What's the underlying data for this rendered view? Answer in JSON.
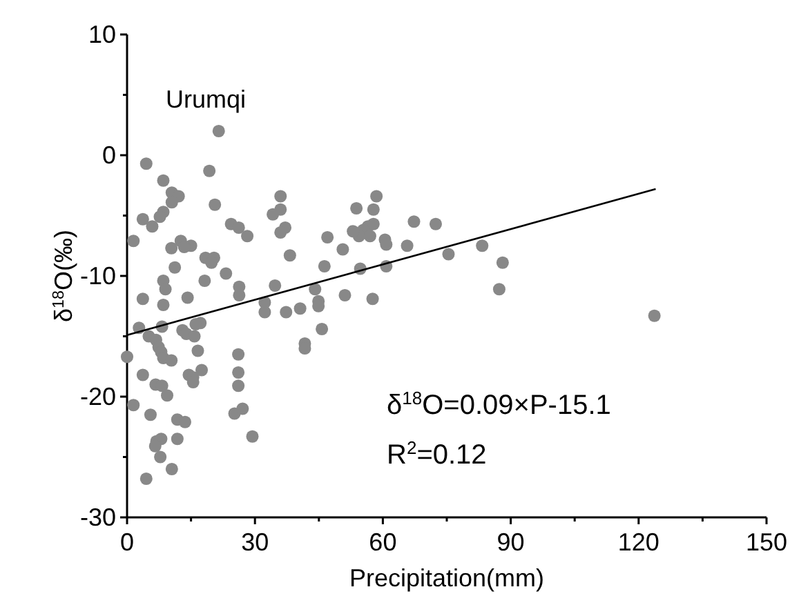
{
  "chart_data": {
    "type": "scatter",
    "xlabel": "Precipitation(mm)",
    "ylabel": "δ$^{18}$O(‰)",
    "xlim": [
      0,
      150
    ],
    "ylim": [
      -30,
      10
    ],
    "xticks": [
      0,
      {
        "value": 15,
        "label": null
      },
      30,
      {
        "value": 45,
        "label": null
      },
      60,
      {
        "value": 75,
        "label": null
      },
      90,
      {
        "value": 105,
        "label": null
      },
      120,
      {
        "value": 135,
        "label": null
      },
      150
    ],
    "yticks": [
      -30,
      {
        "value": -25,
        "label": null
      },
      -20,
      {
        "value": -15,
        "label": null
      },
      -10,
      {
        "value": -5,
        "label": null
      },
      0,
      {
        "value": 5,
        "label": null
      },
      10
    ],
    "grid": false,
    "marker": "circle",
    "annotations": [
      "Urumqi",
      "δ$^{18}$O=0.09×P-15.1",
      "R$^{2}$=0.12"
    ],
    "series": [
      {
        "type": "scatter",
        "color": "#888888",
        "x": [
          21.5,
          4.5,
          19.3,
          8.5,
          10.5,
          12.1,
          10.5,
          36,
          20.6,
          8.5,
          36,
          34.2,
          3.7,
          7.7,
          5.9,
          24.4,
          26.2,
          28.2,
          37.1,
          36,
          1.5,
          12.6,
          15,
          13.4,
          10.4,
          38.2,
          18.4,
          20.4,
          19.8,
          11.2,
          23.2,
          8.5,
          18.2,
          9,
          26.3,
          34.7,
          3.7,
          14.2,
          26.3,
          8.5,
          32.3,
          32.3,
          37.3,
          2.8,
          0,
          5.1,
          6.8,
          8.2,
          7.4,
          8,
          8.5,
          10.4,
          13,
          13.9,
          15.8,
          17.2,
          16.1,
          16.6,
          26.1,
          3.7,
          14.5,
          15.5,
          17.5,
          15.5,
          26.1,
          26.1,
          6.7,
          8.2,
          9.4,
          1.5,
          5.5,
          11.8,
          13.6,
          25.2,
          27.1,
          6.9,
          8,
          6.6,
          11.8,
          29.4,
          7.8,
          10.5,
          4.5,
          58.5,
          53.8,
          57.8,
          57.8,
          56.5,
          55.4,
          54.4,
          53,
          57,
          60.5,
          60.8,
          67.3,
          72.4,
          47,
          50.6,
          65.7,
          83.3,
          75.4,
          88.1,
          87.3,
          46.3,
          54.7,
          60.8,
          44.1,
          44.9,
          44.9,
          51.1,
          57.6,
          40.6,
          45.7,
          41.7,
          41.7,
          123.7
        ],
        "values": [
          2.0,
          -0.7,
          -1.3,
          -2.1,
          -3.1,
          -3.4,
          -3.9,
          -3.4,
          -4.1,
          -4.7,
          -4.5,
          -4.9,
          -5.3,
          -5.1,
          -5.9,
          -5.7,
          -6.0,
          -6.7,
          -6.0,
          -6.4,
          -7.1,
          -7.1,
          -7.5,
          -7.6,
          -7.7,
          -8.3,
          -8.5,
          -8.5,
          -8.9,
          -9.3,
          -9.8,
          -10.4,
          -10.4,
          -11.1,
          -10.9,
          -10.8,
          -11.9,
          -11.8,
          -11.6,
          -12.4,
          -12.2,
          -13.0,
          -13.0,
          -14.3,
          -16.7,
          -15.0,
          -15.3,
          -14.2,
          -15.9,
          -16.3,
          -16.8,
          -17.0,
          -14.5,
          -14.8,
          -15.0,
          -13.9,
          -14.0,
          -16.2,
          -16.5,
          -18.2,
          -18.2,
          -18.4,
          -17.8,
          -18.8,
          -18.0,
          -19.1,
          -19.0,
          -19.1,
          -19.9,
          -20.7,
          -21.5,
          -21.9,
          -22.1,
          -21.4,
          -21.0,
          -23.7,
          -23.5,
          -24.1,
          -23.5,
          -23.3,
          -25.0,
          -26.0,
          -26.8,
          -3.4,
          -4.4,
          -4.5,
          -5.7,
          -5.9,
          -6.2,
          -6.7,
          -6.3,
          -6.7,
          -7.0,
          -7.4,
          -5.5,
          -5.7,
          -6.8,
          -7.8,
          -7.5,
          -7.5,
          -8.2,
          -8.9,
          -11.1,
          -9.2,
          -9.4,
          -9.2,
          -11.1,
          -12.1,
          -12.5,
          -11.6,
          -11.9,
          -12.7,
          -14.4,
          -15.6,
          -16.0,
          -13.3
        ]
      },
      {
        "type": "line",
        "color": "#000000",
        "line_style": "solid",
        "marker": "none",
        "x": [
          0,
          124
        ],
        "values": [
          -14.9,
          -2.8
        ]
      }
    ]
  }
}
